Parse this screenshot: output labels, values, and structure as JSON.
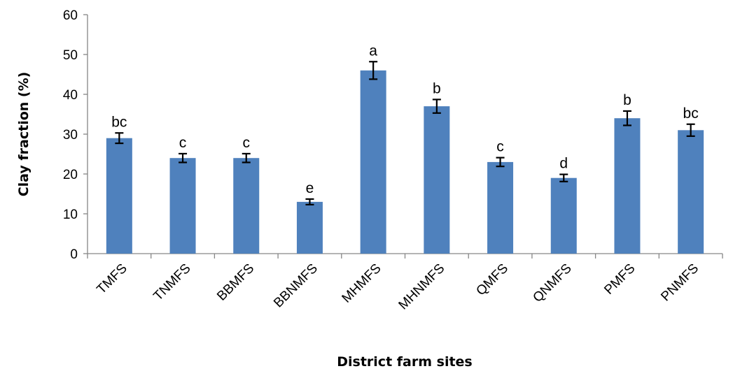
{
  "chart_data": {
    "type": "bar",
    "title": "",
    "xlabel": "District farm sites",
    "ylabel": "Clay fraction (%)",
    "ylim": [
      0,
      60
    ],
    "yticks": [
      0,
      10,
      20,
      30,
      40,
      50,
      60
    ],
    "grid": false,
    "legend": "none",
    "bar_color": "#4f81bd",
    "categories": [
      "TMFS",
      "TNMFS",
      "BBMFS",
      "BBNMFS",
      "MHMFS",
      "MHNMFS",
      "QMFS",
      "QNMFS",
      "PMFS",
      "PNMFS"
    ],
    "values": [
      29,
      24,
      24,
      13,
      46,
      37,
      23,
      19,
      34,
      31
    ],
    "error": [
      1.3,
      1.1,
      1.1,
      0.7,
      2.2,
      1.7,
      1.1,
      0.9,
      1.8,
      1.5
    ],
    "significance_letters": [
      "bc",
      "c",
      "c",
      "e",
      "a",
      "b",
      "c",
      "d",
      "b",
      "bc"
    ]
  }
}
